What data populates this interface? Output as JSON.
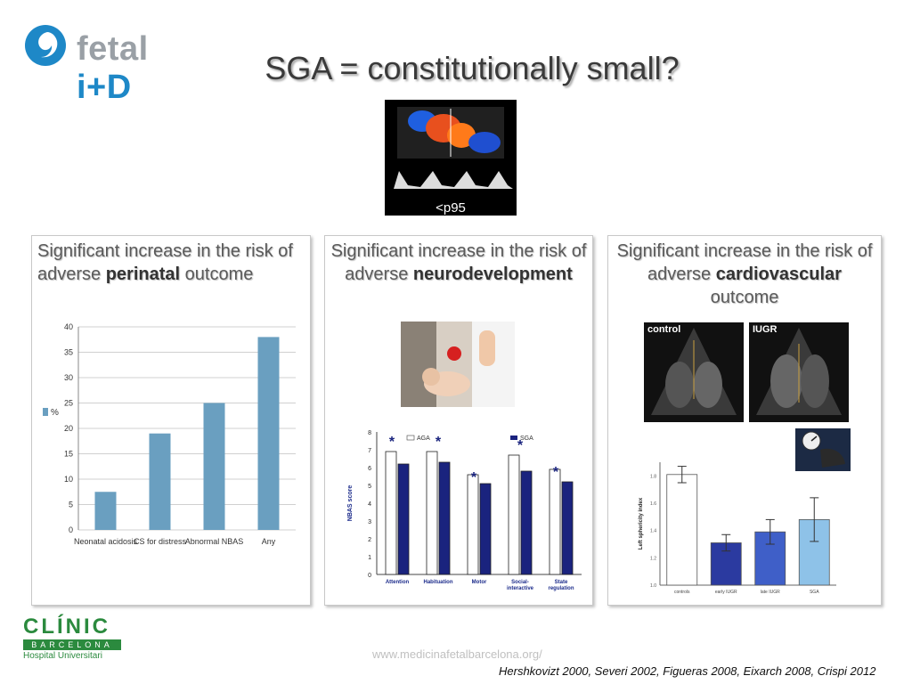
{
  "header": {
    "logo_text_a": "fetal",
    "logo_text_b": "i+D",
    "title": "SGA = constitutionally small?"
  },
  "top_image": {
    "label": "<p95"
  },
  "panels": [
    {
      "heading_pre": "Significant increase in the risk of adverse ",
      "heading_bold": "perinatal",
      "heading_post": " outcome"
    },
    {
      "heading_pre": "Significant increase in the risk of adverse ",
      "heading_bold": "neurodevelopment",
      "heading_post": ""
    },
    {
      "heading_pre": "Significant increase in the risk of adverse ",
      "heading_bold": "cardiovascular",
      "heading_post": " outcome",
      "image_labels": [
        "control",
        "IUGR"
      ]
    }
  ],
  "footer": {
    "clinic_name": "CLÍNIC",
    "clinic_city": "BARCELONA",
    "clinic_sub": "Hospital Universitari",
    "url": "www.medicinafetalbarcelona.org/",
    "references": "Hershkovizt 2000, Severi 2002, Figueras 2008, Eixarch 2008, Crispi 2012"
  },
  "chart_data": [
    {
      "type": "bar",
      "categories": [
        "Neonatal acidosis",
        "CS for distress",
        "Abnormal NBAS",
        "Any"
      ],
      "series": [
        {
          "name": "%",
          "values": [
            7.5,
            19,
            25,
            38
          ]
        }
      ],
      "yticks": [
        0,
        5,
        10,
        15,
        20,
        25,
        30,
        35,
        40
      ],
      "ylim": [
        0,
        40
      ],
      "legend": "left",
      "color": "#6a9fc0"
    },
    {
      "type": "bar",
      "categories": [
        "Attention",
        "Habituation",
        "Motor",
        "Social-interactive",
        "State regulation"
      ],
      "series": [
        {
          "name": "AGA",
          "values": [
            6.9,
            6.9,
            5.6,
            6.7,
            5.9
          ]
        },
        {
          "name": "SGA",
          "values": [
            6.2,
            6.3,
            5.1,
            5.8,
            5.2
          ]
        }
      ],
      "ylabel": "NBAS score",
      "ylim": [
        0,
        8
      ],
      "yticks": [
        0,
        1,
        2,
        3,
        4,
        5,
        6,
        7,
        8
      ],
      "significance_marker": "*",
      "legend": "top"
    },
    {
      "type": "bar",
      "categories": [
        "controls",
        "early IUGR",
        "late IUGR",
        "SGA"
      ],
      "values": [
        1.81,
        1.31,
        1.39,
        1.48
      ],
      "errors": [
        0.06,
        0.06,
        0.09,
        0.16
      ],
      "colors": [
        "#ffffff",
        "#2b3aa0",
        "#3f5fc8",
        "#8ec2e8"
      ],
      "ylabel": "Left sphericity index",
      "ylim": [
        1.0,
        1.9
      ],
      "yticks": [
        1.0,
        1.2,
        1.4,
        1.6,
        1.8
      ]
    }
  ]
}
